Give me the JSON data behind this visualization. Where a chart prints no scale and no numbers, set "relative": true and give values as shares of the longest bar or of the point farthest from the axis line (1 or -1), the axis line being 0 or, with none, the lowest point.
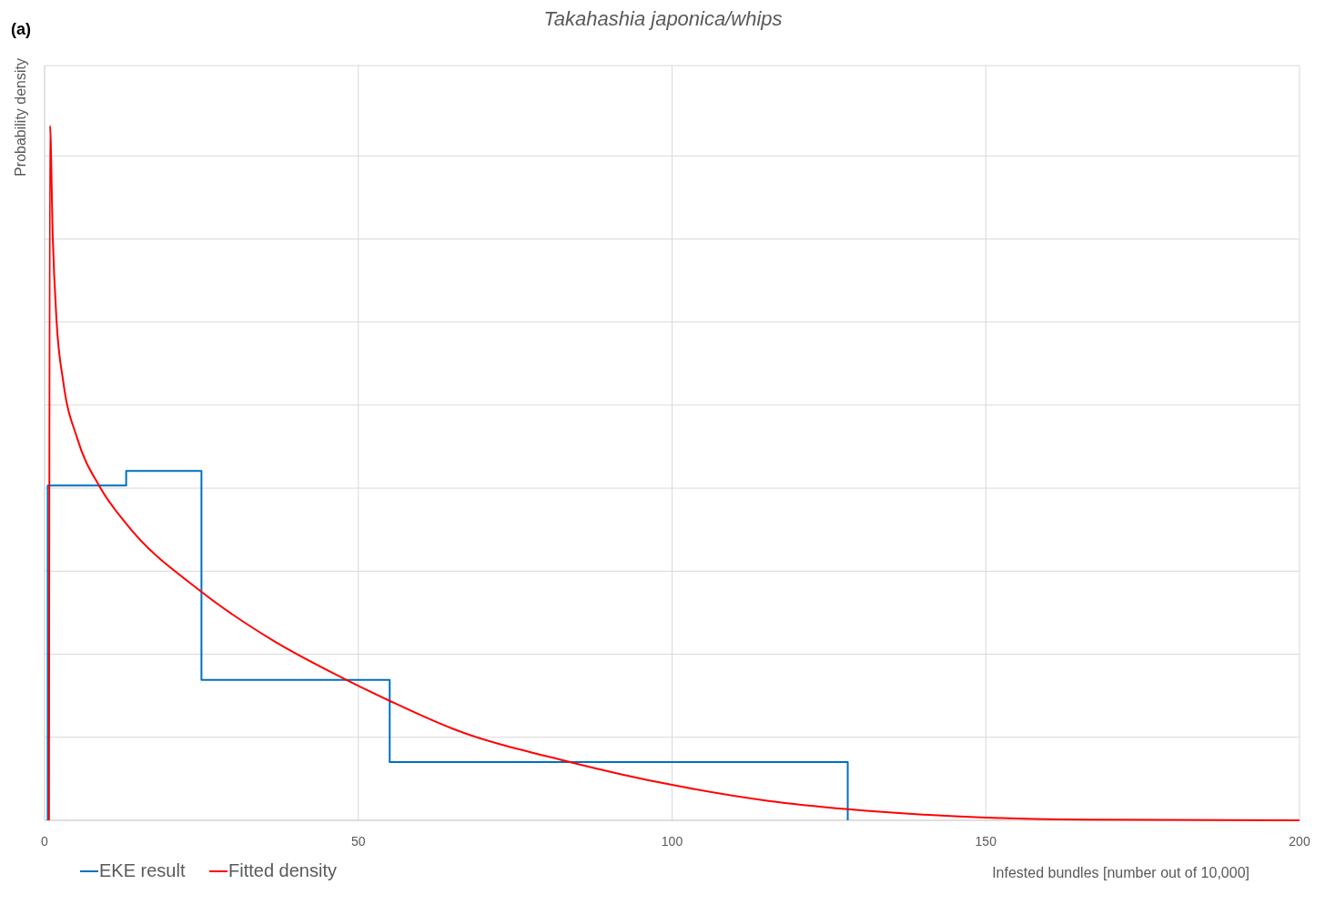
{
  "chart_data": {
    "type": "line",
    "title": "Takahashia japonica/whips",
    "xlabel": "Infested bundles [number out of 10,000]",
    "ylabel": "Probability density",
    "annotations": [
      "(a)"
    ],
    "relative": true,
    "xlim": [
      0,
      200
    ],
    "xticks": [
      0,
      50,
      100,
      150,
      200
    ],
    "grid": true,
    "legend": "bottom left",
    "marker": "none",
    "series": [
      {
        "name": "EKE result",
        "type": "step",
        "color": "#0070c0",
        "x": [
          0.5,
          0.5,
          13,
          25,
          55,
          128,
          128
        ],
        "values": [
          0,
          0.482,
          0.503,
          0.202,
          0.084,
          0.084,
          0
        ]
      },
      {
        "name": "Fitted density",
        "color": "#ff0000",
        "x": [
          0.7,
          0.86,
          1.3,
          1.9,
          3,
          5.2,
          8.8,
          13,
          25,
          36.2,
          47.7,
          55,
          65,
          83.7,
          100,
          115.4,
          128,
          150,
          166,
          200
        ],
        "values": [
          0,
          1,
          0.84,
          0.72,
          0.63,
          0.55,
          0.48,
          0.427,
          0.329,
          0.26,
          0.204,
          0.172,
          0.132,
          0.084,
          0.051,
          0.028,
          0.016,
          0.004,
          0.001,
          0
        ]
      }
    ]
  }
}
